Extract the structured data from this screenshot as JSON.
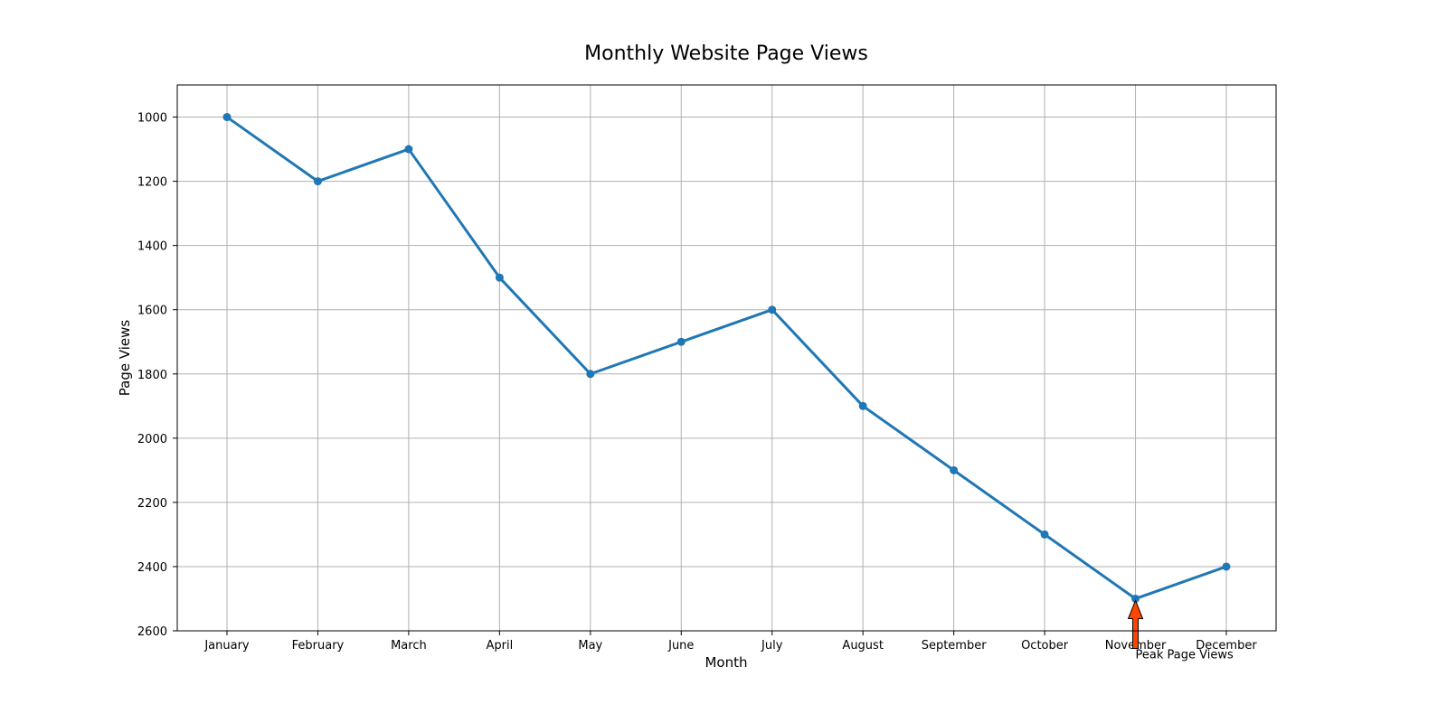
{
  "chart_data": {
    "type": "line",
    "title": "Monthly Website Page Views",
    "xlabel": "Month",
    "ylabel": "Page Views",
    "categories": [
      "January",
      "February",
      "March",
      "April",
      "May",
      "June",
      "July",
      "August",
      "September",
      "October",
      "November",
      "December"
    ],
    "values": [
      1000,
      1200,
      1100,
      1500,
      1800,
      1700,
      1600,
      1900,
      2100,
      2300,
      2500,
      2400
    ],
    "ylim": [
      2600,
      900
    ],
    "yticks": [
      1000,
      1200,
      1400,
      1600,
      1800,
      2000,
      2200,
      2400,
      2600
    ],
    "y_inverted": true,
    "grid": true,
    "colors": {
      "line": "#1f77b4",
      "arrow": "#ff4500"
    },
    "annotation": {
      "text": "Peak Page Views",
      "month": "November",
      "value": 2500
    }
  }
}
